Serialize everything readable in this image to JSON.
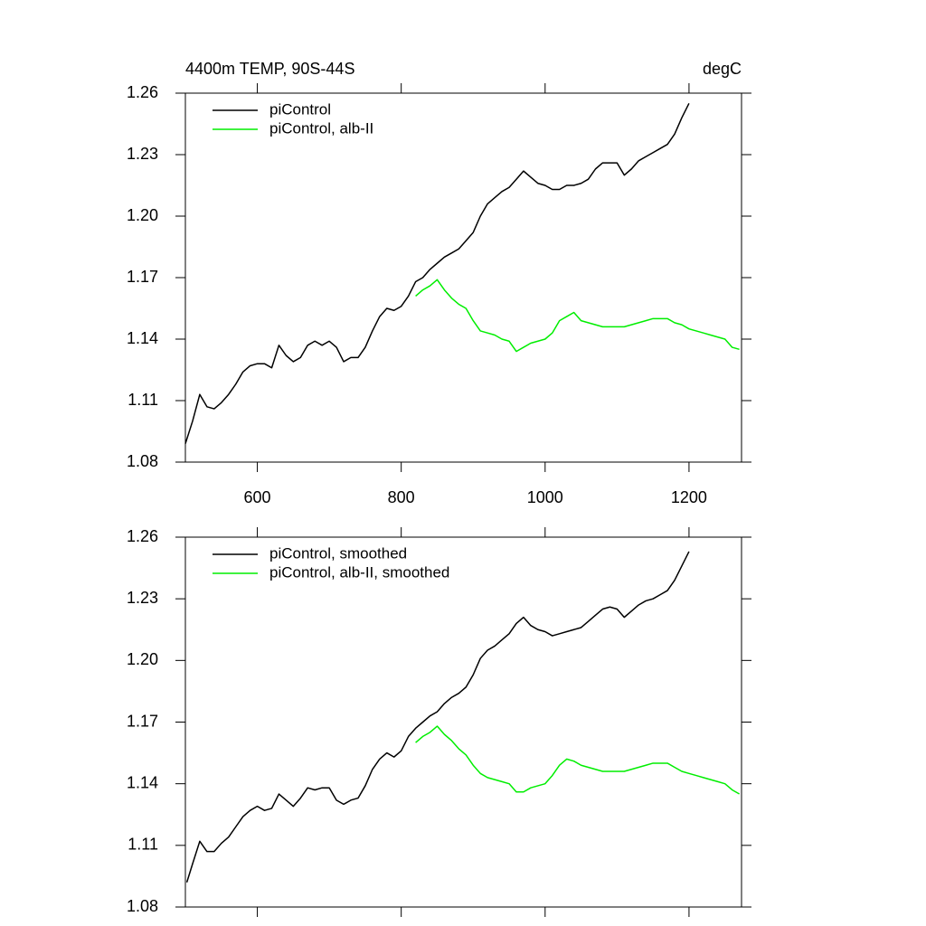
{
  "chart_data": [
    {
      "type": "line",
      "title": "4400m TEMP, 90S-44S",
      "units": "degC",
      "xlim": [
        500,
        1273
      ],
      "xticks": [
        600,
        800,
        1000,
        1200
      ],
      "xtick_labels": true,
      "ylim": [
        1.08,
        1.26
      ],
      "yticks": [
        1.08,
        1.11,
        1.14,
        1.17,
        {
          "value": 1.2,
          "label": "1.20"
        },
        1.23,
        1.26
      ],
      "legend": "upper left",
      "series": [
        {
          "name": "piControl",
          "color": "#000000",
          "x": [
            500,
            510,
            520,
            530,
            540,
            550,
            560,
            570,
            580,
            590,
            600,
            610,
            620,
            630,
            640,
            650,
            660,
            670,
            680,
            690,
            700,
            710,
            720,
            730,
            740,
            750,
            760,
            770,
            780,
            790,
            800,
            810,
            820,
            830,
            840,
            850,
            860,
            870,
            880,
            890,
            900,
            910,
            920,
            930,
            940,
            950,
            960,
            970,
            980,
            990,
            1000,
            1010,
            1020,
            1030,
            1040,
            1050,
            1060,
            1070,
            1080,
            1090,
            1100,
            1110,
            1120,
            1130,
            1140,
            1150,
            1160,
            1170,
            1180,
            1190,
            1200
          ],
          "values": [
            1.089,
            1.1,
            1.113,
            1.107,
            1.106,
            1.109,
            1.113,
            1.118,
            1.124,
            1.127,
            1.128,
            1.128,
            1.126,
            1.137,
            1.132,
            1.129,
            1.131,
            1.137,
            1.139,
            1.137,
            1.139,
            1.136,
            1.129,
            1.131,
            1.131,
            1.136,
            1.144,
            1.151,
            1.155,
            1.154,
            1.156,
            1.161,
            1.168,
            1.17,
            1.174,
            1.177,
            1.18,
            1.182,
            1.184,
            1.188,
            1.192,
            1.2,
            1.206,
            1.209,
            1.212,
            1.214,
            1.218,
            1.222,
            1.219,
            1.216,
            1.215,
            1.213,
            1.213,
            1.215,
            1.215,
            1.216,
            1.218,
            1.223,
            1.226,
            1.226,
            1.226,
            1.22,
            1.223,
            1.227,
            1.229,
            1.231,
            1.233,
            1.235,
            1.24,
            1.248,
            1.255
          ]
        },
        {
          "name": "piControl, alb-II",
          "color": "#00ee00",
          "x": [
            820,
            830,
            840,
            850,
            860,
            870,
            880,
            890,
            900,
            910,
            920,
            930,
            940,
            950,
            960,
            970,
            980,
            990,
            1000,
            1010,
            1020,
            1030,
            1040,
            1050,
            1060,
            1070,
            1080,
            1090,
            1100,
            1110,
            1120,
            1130,
            1140,
            1150,
            1160,
            1170,
            1180,
            1190,
            1200,
            1210,
            1220,
            1230,
            1240,
            1250,
            1260,
            1270
          ],
          "values": [
            1.161,
            1.164,
            1.166,
            1.169,
            1.164,
            1.16,
            1.157,
            1.155,
            1.149,
            1.144,
            1.143,
            1.142,
            1.14,
            1.139,
            1.134,
            1.136,
            1.138,
            1.139,
            1.14,
            1.143,
            1.149,
            1.151,
            1.153,
            1.149,
            1.148,
            1.147,
            1.146,
            1.146,
            1.146,
            1.146,
            1.147,
            1.148,
            1.149,
            1.15,
            1.15,
            1.15,
            1.148,
            1.147,
            1.145,
            1.144,
            1.143,
            1.142,
            1.141,
            1.14,
            1.136,
            1.135
          ]
        }
      ]
    },
    {
      "type": "line",
      "xlim": [
        500,
        1273
      ],
      "xticks": [
        600,
        800,
        1000,
        1200
      ],
      "xtick_labels": false,
      "ylim": [
        1.08,
        1.26
      ],
      "yticks": [
        1.08,
        1.11,
        1.14,
        1.17,
        {
          "value": 1.2,
          "label": "1.20"
        },
        1.23,
        1.26
      ],
      "legend": "upper left",
      "series": [
        {
          "name": "piControl, smoothed",
          "color": "#000000",
          "x": [
            502,
            510,
            520,
            530,
            540,
            550,
            560,
            570,
            580,
            590,
            600,
            610,
            620,
            630,
            640,
            650,
            660,
            670,
            680,
            690,
            700,
            710,
            720,
            730,
            740,
            750,
            760,
            770,
            780,
            790,
            800,
            810,
            820,
            830,
            840,
            850,
            860,
            870,
            880,
            890,
            900,
            910,
            920,
            930,
            940,
            950,
            960,
            970,
            980,
            990,
            1000,
            1010,
            1020,
            1030,
            1040,
            1050,
            1060,
            1070,
            1080,
            1090,
            1100,
            1110,
            1120,
            1130,
            1140,
            1150,
            1160,
            1170,
            1180,
            1190,
            1200
          ],
          "values": [
            1.092,
            1.101,
            1.112,
            1.107,
            1.107,
            1.111,
            1.114,
            1.119,
            1.124,
            1.127,
            1.129,
            1.127,
            1.128,
            1.135,
            1.132,
            1.129,
            1.133,
            1.138,
            1.137,
            1.138,
            1.138,
            1.132,
            1.13,
            1.132,
            1.133,
            1.139,
            1.147,
            1.152,
            1.155,
            1.153,
            1.156,
            1.163,
            1.167,
            1.17,
            1.173,
            1.175,
            1.179,
            1.182,
            1.184,
            1.187,
            1.193,
            1.201,
            1.205,
            1.207,
            1.21,
            1.213,
            1.218,
            1.221,
            1.217,
            1.215,
            1.214,
            1.212,
            1.213,
            1.214,
            1.215,
            1.216,
            1.219,
            1.222,
            1.225,
            1.226,
            1.225,
            1.221,
            1.224,
            1.227,
            1.229,
            1.23,
            1.232,
            1.234,
            1.239,
            1.246,
            1.253
          ]
        },
        {
          "name": "piControl, alb-II, smoothed",
          "color": "#00ee00",
          "x": [
            820,
            830,
            840,
            850,
            860,
            870,
            880,
            890,
            900,
            910,
            920,
            930,
            940,
            950,
            960,
            970,
            980,
            990,
            1000,
            1010,
            1020,
            1030,
            1040,
            1050,
            1060,
            1070,
            1080,
            1090,
            1100,
            1110,
            1120,
            1130,
            1140,
            1150,
            1160,
            1170,
            1180,
            1190,
            1200,
            1210,
            1220,
            1230,
            1240,
            1250,
            1260,
            1270
          ],
          "values": [
            1.16,
            1.163,
            1.165,
            1.168,
            1.164,
            1.161,
            1.157,
            1.154,
            1.149,
            1.145,
            1.143,
            1.142,
            1.141,
            1.14,
            1.136,
            1.136,
            1.138,
            1.139,
            1.14,
            1.144,
            1.149,
            1.152,
            1.151,
            1.149,
            1.148,
            1.147,
            1.146,
            1.146,
            1.146,
            1.146,
            1.147,
            1.148,
            1.149,
            1.15,
            1.15,
            1.15,
            1.148,
            1.146,
            1.145,
            1.144,
            1.143,
            1.142,
            1.141,
            1.14,
            1.137,
            1.135
          ]
        }
      ]
    }
  ]
}
